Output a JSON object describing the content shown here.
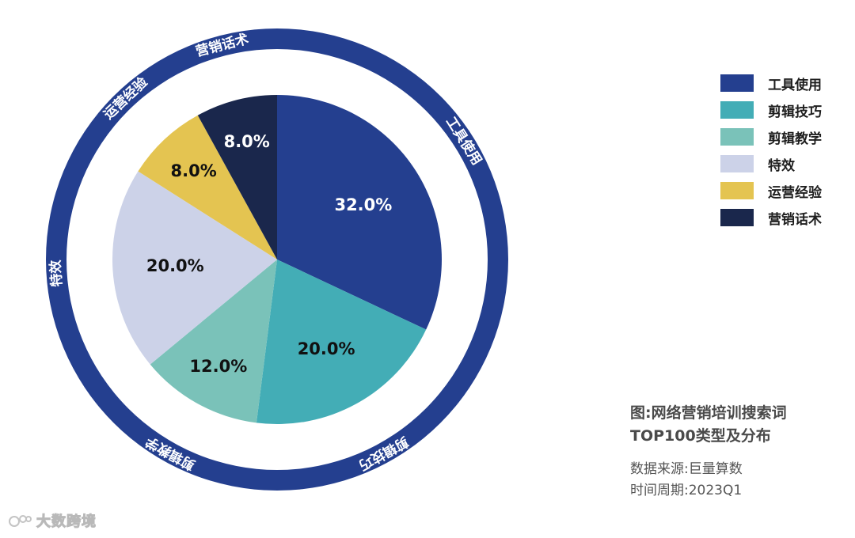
{
  "chart_data": {
    "type": "pie",
    "categories": [
      "工具使用",
      "剪辑技巧",
      "剪辑教学",
      "特效",
      "运营经验",
      "营销话术"
    ],
    "values": [
      32.0,
      20.0,
      12.0,
      20.0,
      8.0,
      8.0
    ],
    "value_labels": [
      "32.0%",
      "20.0%",
      "12.0%",
      "20.0%",
      "8.0%",
      "8.0%"
    ],
    "colors": [
      "#243f8f",
      "#43adb6",
      "#7ac2b9",
      "#ccd2e8",
      "#e4c451",
      "#1a274c"
    ],
    "label_colors": [
      "#ffffff",
      "#111111",
      "#111111",
      "#111111",
      "#111111",
      "#ffffff"
    ],
    "ring_color": "#243f8f",
    "ring_labels": [
      "工具使用",
      "剪辑技巧",
      "剪辑教学",
      "特效",
      "运营经验",
      "营销话术"
    ],
    "legend_position": "right"
  },
  "legend": {
    "items": [
      {
        "label": "工具使用",
        "color": "#243f8f"
      },
      {
        "label": "剪辑技巧",
        "color": "#43adb6"
      },
      {
        "label": "剪辑教学",
        "color": "#7ac2b9"
      },
      {
        "label": "特效",
        "color": "#ccd2e8"
      },
      {
        "label": "运营经验",
        "color": "#e4c451"
      },
      {
        "label": "营销话术",
        "color": "#1a274c"
      }
    ]
  },
  "caption": {
    "title_line1": "图:网络营销培训搜索词",
    "title_line2": "TOP100类型及分布",
    "source": "数据来源:巨量算数",
    "period": "时间周期:2023Q1"
  },
  "watermark": {
    "text": "大数跨境"
  }
}
